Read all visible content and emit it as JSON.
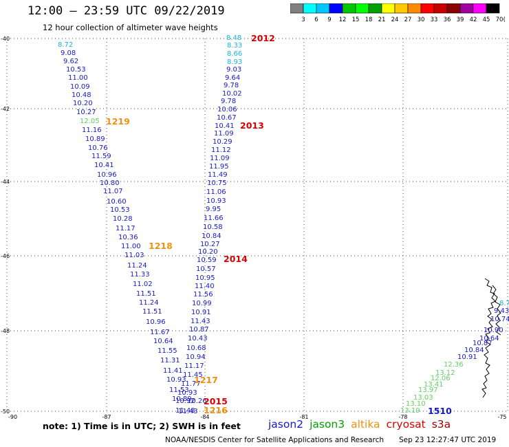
{
  "title": "12:00 — 23:59 UTC 09/22/2019",
  "subtitle": "12 hour collection of altimeter wave heights",
  "legend": {
    "colors": [
      "#808080",
      "#00ffff",
      "#00c8ff",
      "#0000ff",
      "#00c800",
      "#00ff00",
      "#00a000",
      "#ffff00",
      "#ffc800",
      "#ff8c00",
      "#ff0000",
      "#c80000",
      "#8b0000",
      "#a000a0",
      "#ff00ff",
      "#000000"
    ],
    "labels": [
      "3",
      "6",
      "9",
      "12",
      "15",
      "18",
      "21",
      "24",
      "27",
      "30",
      "33",
      "36",
      "39",
      "42",
      "45",
      "70",
      "(ft)"
    ]
  },
  "map": {
    "lat_ticks": [
      "-40",
      "-42",
      "-44",
      "-46",
      "-48",
      "-50"
    ],
    "lon_ticks": [
      "-90",
      "-87",
      "-84",
      "-81",
      "-78",
      "-75"
    ],
    "track_colors": {
      "cyan": "#18b4d8",
      "blue": "#1818c8",
      "green": "#60d060",
      "orange": "#f0900c",
      "red": "#d80000"
    },
    "tracks": [
      {
        "points": [
          {
            "t": "8.72",
            "c": "cyan"
          },
          {
            "t": "9.08",
            "c": "blue"
          },
          {
            "t": "9.62",
            "c": "blue"
          },
          {
            "t": "10.53",
            "c": "blue"
          },
          {
            "t": "11.00",
            "c": "blue"
          },
          {
            "t": "10.09",
            "c": "blue"
          },
          {
            "t": "10.48",
            "c": "blue"
          },
          {
            "t": "10.20",
            "c": "blue"
          },
          {
            "t": "10.27",
            "c": "blue"
          },
          {
            "t": "12.05",
            "c": "green"
          },
          {
            "t": "11.16",
            "c": "blue"
          },
          {
            "t": "10.89",
            "c": "blue"
          },
          {
            "t": "10.76",
            "c": "blue"
          },
          {
            "t": "11.59",
            "c": "blue"
          },
          {
            "t": "10.41",
            "c": "blue"
          },
          {
            "t": "10.96",
            "c": "blue"
          },
          {
            "t": "10.80",
            "c": "blue"
          },
          {
            "t": "11.07",
            "c": "blue"
          },
          {
            "t": "10.60",
            "c": "blue"
          },
          {
            "t": "10.53",
            "c": "blue"
          },
          {
            "t": "10.28",
            "c": "blue"
          },
          {
            "t": "11.17",
            "c": "blue"
          },
          {
            "t": "10.36",
            "c": "blue"
          },
          {
            "t": "11.00",
            "c": "blue"
          },
          {
            "t": "11.03",
            "c": "blue"
          },
          {
            "t": "11.24",
            "c": "blue"
          },
          {
            "t": "11.33",
            "c": "blue"
          },
          {
            "t": "11.02",
            "c": "blue"
          },
          {
            "t": "11.51",
            "c": "blue"
          },
          {
            "t": "11.24",
            "c": "blue"
          },
          {
            "t": "11.51",
            "c": "blue"
          },
          {
            "t": "10.96",
            "c": "blue"
          },
          {
            "t": "11.67",
            "c": "blue"
          },
          {
            "t": "10.64",
            "c": "blue"
          },
          {
            "t": "11.55",
            "c": "blue"
          },
          {
            "t": "11.31",
            "c": "blue"
          },
          {
            "t": "11.41",
            "c": "blue"
          },
          {
            "t": "10.93",
            "c": "blue"
          },
          {
            "t": "11.53",
            "c": "blue"
          },
          {
            "t": "10.89",
            "c": "blue"
          },
          {
            "t": "11.48",
            "c": "blue"
          }
        ]
      },
      {
        "points": [
          {
            "t": "8.48",
            "c": "cyan"
          },
          {
            "t": "8.33",
            "c": "cyan"
          },
          {
            "t": "8.66",
            "c": "cyan"
          },
          {
            "t": "8.93",
            "c": "cyan"
          },
          {
            "t": "9.03",
            "c": "blue"
          },
          {
            "t": "9.64",
            "c": "blue"
          },
          {
            "t": "9.78",
            "c": "blue"
          },
          {
            "t": "10.02",
            "c": "blue"
          },
          {
            "t": "9.78",
            "c": "blue"
          },
          {
            "t": "10.06",
            "c": "blue"
          },
          {
            "t": "10.67",
            "c": "blue"
          },
          {
            "t": "10.41",
            "c": "blue"
          },
          {
            "t": "11.09",
            "c": "blue"
          },
          {
            "t": "10.29",
            "c": "blue"
          },
          {
            "t": "11.12",
            "c": "blue"
          },
          {
            "t": "11.09",
            "c": "blue"
          },
          {
            "t": "11.95",
            "c": "blue"
          },
          {
            "t": "11.49",
            "c": "blue"
          },
          {
            "t": "10.75",
            "c": "blue"
          },
          {
            "t": "11.06",
            "c": "blue"
          },
          {
            "t": "10.93",
            "c": "blue"
          },
          {
            "t": "9.95",
            "c": "blue"
          },
          {
            "t": "11.66",
            "c": "blue"
          },
          {
            "t": "10.58",
            "c": "blue"
          },
          {
            "t": "10.84",
            "c": "blue"
          },
          {
            "t": "10.27",
            "c": "blue"
          },
          {
            "t": "10.20",
            "c": "blue"
          },
          {
            "t": "10.59",
            "c": "blue"
          },
          {
            "t": "10.57",
            "c": "blue"
          },
          {
            "t": "10.95",
            "c": "blue"
          },
          {
            "t": "11.40",
            "c": "blue"
          },
          {
            "t": "11.56",
            "c": "blue"
          },
          {
            "t": "10.99",
            "c": "blue"
          },
          {
            "t": "10.91",
            "c": "blue"
          },
          {
            "t": "11.43",
            "c": "blue"
          },
          {
            "t": "10.87",
            "c": "blue"
          },
          {
            "t": "10.43",
            "c": "blue"
          },
          {
            "t": "10.68",
            "c": "blue"
          },
          {
            "t": "10.94",
            "c": "blue"
          },
          {
            "t": "11.17",
            "c": "blue"
          },
          {
            "t": "11.45",
            "c": "blue"
          },
          {
            "t": "11.77",
            "c": "blue"
          },
          {
            "t": "10.93",
            "c": "blue"
          },
          {
            "t": "10.92",
            "c": "blue"
          },
          {
            "t": "10.26",
            "c": "blue"
          },
          {
            "t": "11.43",
            "c": "blue"
          }
        ]
      },
      {
        "points": [
          {
            "t": "8.7",
            "c": "cyan"
          },
          {
            "t": "9.43",
            "c": "blue"
          },
          {
            "t": "10.74",
            "c": "blue"
          },
          {
            "t": "10.90",
            "c": "blue"
          },
          {
            "t": "10.64",
            "c": "blue"
          },
          {
            "t": "10.87",
            "c": "blue"
          },
          {
            "t": "10.84",
            "c": "blue"
          },
          {
            "t": "10.91",
            "c": "blue"
          },
          {
            "t": "12.36",
            "c": "green"
          },
          {
            "t": "13.12",
            "c": "green"
          },
          {
            "t": "12.06",
            "c": "green"
          },
          {
            "t": "13.41",
            "c": "green"
          },
          {
            "t": "13.97",
            "c": "green"
          },
          {
            "t": "13.03",
            "c": "green"
          },
          {
            "t": "13.10",
            "c": "green"
          },
          {
            "t": "13.19",
            "c": "green"
          }
        ]
      }
    ],
    "time_labels": [
      {
        "t": "2012",
        "c": "red"
      },
      {
        "t": "1219",
        "c": "orange"
      },
      {
        "t": "2013",
        "c": "red"
      },
      {
        "t": "1218",
        "c": "orange"
      },
      {
        "t": "2014",
        "c": "red"
      },
      {
        "t": "1217",
        "c": "orange"
      },
      {
        "t": "2015",
        "c": "red"
      },
      {
        "t": "1216",
        "c": "orange"
      },
      {
        "t": "1510",
        "c": "blue"
      }
    ]
  },
  "note": "note: 1) Time is in UTC; 2) SWH is in feet",
  "satellites": [
    {
      "name": "jason2",
      "color": "#1818c8"
    },
    {
      "name": "jason3",
      "color": "#00a000"
    },
    {
      "name": "altika",
      "color": "#f0900c"
    },
    {
      "name": "cryosat",
      "color": "#d80000"
    },
    {
      "name": "s3a",
      "color": "#a00000"
    }
  ],
  "credit": "NOAA/NESDIS Center for Satellite Applications and Research",
  "timestamp": "Sep 23 12:27:47 UTC 2019"
}
